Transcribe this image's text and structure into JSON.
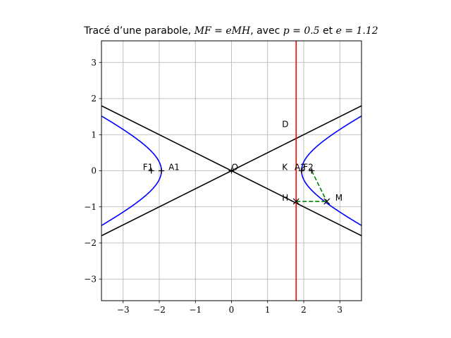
{
  "chart_data": {
    "type": "line",
    "title": {
      "prefix": "Tracé d’une parabole, ",
      "eq": "MF = eMH",
      "mid": ", avec ",
      "p_expr": "p = 0.5",
      "join": " et ",
      "e_expr": "e = 1.12"
    },
    "xlim": [
      -3.6,
      3.6
    ],
    "ylim": [
      -3.6,
      3.6
    ],
    "xticks": [
      -3,
      -2,
      -1,
      0,
      1,
      2,
      3
    ],
    "yticks": [
      -3,
      -2,
      -1,
      0,
      1,
      2,
      3
    ],
    "xtick_labels": [
      "−3",
      "−2",
      "−1",
      "0",
      "1",
      "2",
      "3"
    ],
    "ytick_labels": [
      "−3",
      "−2",
      "−1",
      "0",
      "1",
      "2",
      "3"
    ],
    "grid": true,
    "colors": {
      "curve": "#0000ff",
      "asymptote": "#000000",
      "directrix": "#ff0000",
      "construction": "#008000"
    },
    "curve": {
      "a": 1.94,
      "b": 0.97,
      "x_max": 3.6
    },
    "asymptotes": [
      {
        "x": [
          -3.6,
          3.6
        ],
        "y": [
          1.8,
          -1.8
        ]
      },
      {
        "x": [
          -3.6,
          3.6
        ],
        "y": [
          -1.8,
          1.8
        ]
      }
    ],
    "directrix_x": 1.79,
    "construction": {
      "F": [
        2.22,
        0
      ],
      "M": [
        2.64,
        -0.85
      ],
      "H": [
        1.79,
        -0.85
      ]
    },
    "points": [
      {
        "label": "F1",
        "x": -2.22,
        "y": 0,
        "marker": "+"
      },
      {
        "label": "A1",
        "x": -1.94,
        "y": 0,
        "marker": "+"
      },
      {
        "label": "O",
        "x": 0,
        "y": 0,
        "marker": "+"
      },
      {
        "label": "K",
        "x": 1.79,
        "y": 0,
        "marker": "none"
      },
      {
        "label": "A2",
        "x": 1.94,
        "y": 0,
        "marker": "+"
      },
      {
        "label": "F2",
        "x": 2.22,
        "y": 0,
        "marker": "+"
      },
      {
        "label": "D",
        "x": 1.79,
        "y": 0.9,
        "marker": "none"
      },
      {
        "label": "H",
        "x": 1.79,
        "y": -0.85,
        "marker": "x"
      },
      {
        "label": "M",
        "x": 2.64,
        "y": -0.85,
        "marker": "x"
      }
    ]
  }
}
